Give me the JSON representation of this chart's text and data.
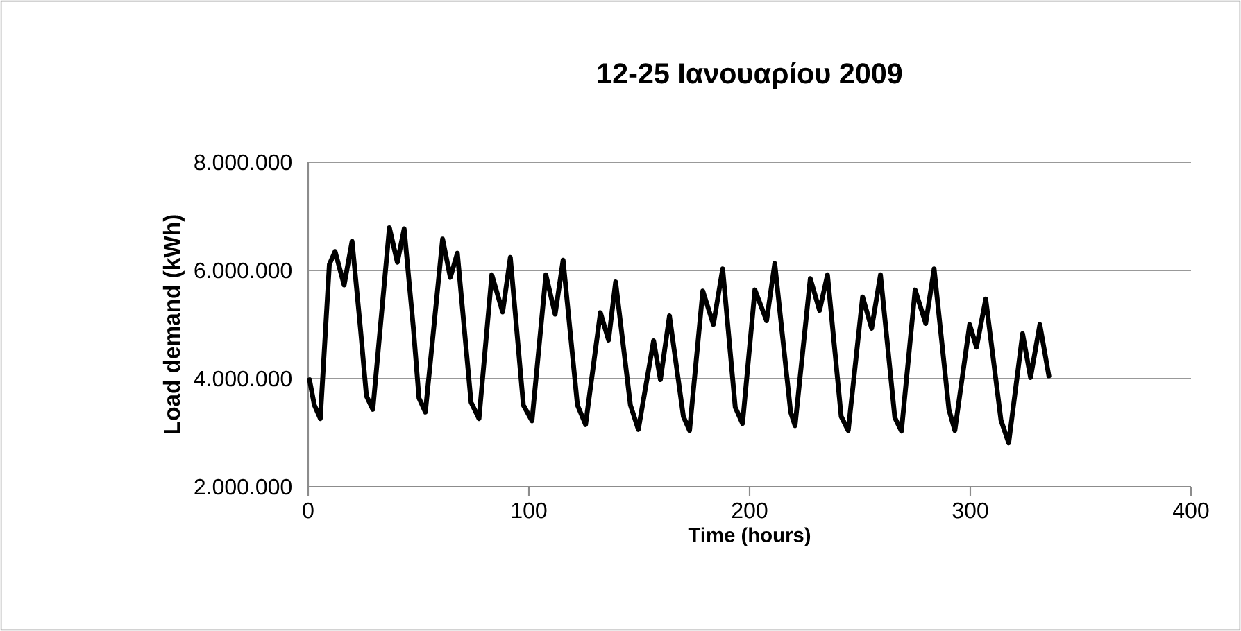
{
  "chart_data": {
    "type": "line",
    "title": "12-25 Ιανουαρίου 2009",
    "xlabel": "Time (hours)",
    "ylabel": "Load demand (kWh)",
    "xlim": [
      0,
      400
    ],
    "xticks": [
      0,
      100,
      200,
      300,
      400
    ],
    "ylim": [
      2000000,
      8000000
    ],
    "yticks": [
      {
        "value": 2000000,
        "label": "2.000.000"
      },
      {
        "value": 4000000,
        "label": "4.000.000"
      },
      {
        "value": 6000000,
        "label": "6.000.000"
      },
      {
        "value": 8000000,
        "label": "8.000.000"
      }
    ],
    "grid": "y",
    "line_style": "solid",
    "marker": "none",
    "series": [
      {
        "color": "#000000",
        "x": [
          0.6,
          2.8,
          5.5,
          9.6,
          12.2,
          16.3,
          19.9,
          23.7,
          26.4,
          29.3,
          36.8,
          40.4,
          43.5,
          47.7,
          50.2,
          53.1,
          60.9,
          64.4,
          67.6,
          73.8,
          77.4,
          83.2,
          88.1,
          91.6,
          97.5,
          101.4,
          107.7,
          111.9,
          115.5,
          122,
          125.7,
          132.4,
          136.1,
          139.3,
          146,
          149.6,
          156.5,
          159.6,
          163.7,
          170,
          172.8,
          178.8,
          183.6,
          187.8,
          193.5,
          196.8,
          202.4,
          207.7,
          211.4,
          218.6,
          220.6,
          227.5,
          231.7,
          235.3,
          241.5,
          244.7,
          251.2,
          255.3,
          259.3,
          265.8,
          268.8,
          275,
          279.8,
          283.6,
          290.3,
          293,
          299.7,
          302.8,
          307,
          313.9,
          317.4,
          323.7,
          327.3,
          331.5,
          335.6
        ],
        "values": [
          3980000,
          3510000,
          3260000,
          6110000,
          6350000,
          5730000,
          6540000,
          4920000,
          3680000,
          3430000,
          6790000,
          6150000,
          6770000,
          4920000,
          3640000,
          3380000,
          6580000,
          5870000,
          6320000,
          3560000,
          3260000,
          5920000,
          5230000,
          6240000,
          3510000,
          3220000,
          5920000,
          5190000,
          6190000,
          3510000,
          3150000,
          5220000,
          4710000,
          5790000,
          3510000,
          3060000,
          4700000,
          3980000,
          5160000,
          3300000,
          3040000,
          5620000,
          5000000,
          6030000,
          3470000,
          3170000,
          5640000,
          5070000,
          6130000,
          3380000,
          3130000,
          5850000,
          5260000,
          5920000,
          3300000,
          3040000,
          5510000,
          4930000,
          5920000,
          3280000,
          3030000,
          5640000,
          5020000,
          6030000,
          3430000,
          3040000,
          5000000,
          4580000,
          5470000,
          3230000,
          2810000,
          4830000,
          4020000,
          5000000,
          4050000
        ]
      }
    ]
  }
}
